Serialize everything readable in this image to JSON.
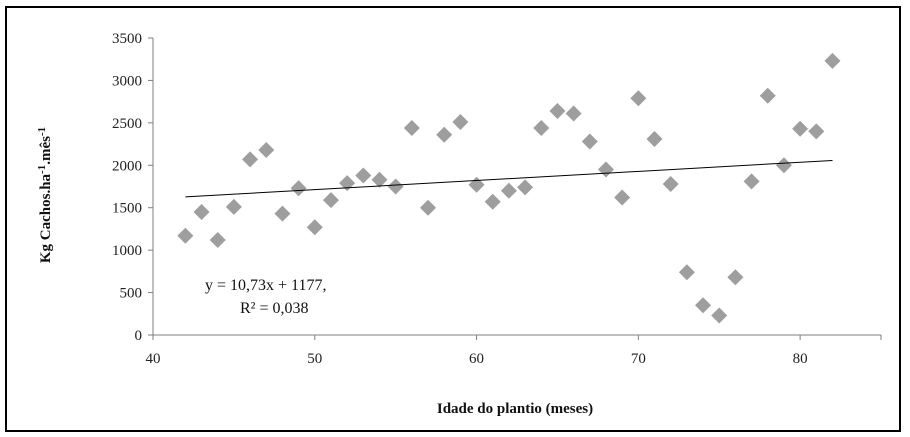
{
  "chart_data": {
    "type": "scatter",
    "xlabel": "Idade do plantio (meses)",
    "ylabel": {
      "main": "Kg Cachos.ha",
      "sup1": "-1",
      "mid": ".mês",
      "sup2": "-1"
    },
    "xlim": [
      40,
      85
    ],
    "ylim": [
      0,
      3500
    ],
    "x_ticks": [
      40,
      50,
      60,
      70,
      80
    ],
    "y_ticks": [
      0,
      500,
      1000,
      1500,
      2000,
      2500,
      3000,
      3500
    ],
    "grid": false,
    "marker_color": "#9e9e9e",
    "trendline": {
      "equation": "y = 10,73x + 1177,",
      "r2": "R² = 0,038",
      "slope": 10.73,
      "intercept": 1177,
      "x_range": [
        42,
        82
      ]
    },
    "points": [
      {
        "x": 42,
        "y": 1170
      },
      {
        "x": 43,
        "y": 1450
      },
      {
        "x": 44,
        "y": 1120
      },
      {
        "x": 45,
        "y": 1510
      },
      {
        "x": 46,
        "y": 2070
      },
      {
        "x": 47,
        "y": 2180
      },
      {
        "x": 48,
        "y": 1430
      },
      {
        "x": 49,
        "y": 1730
      },
      {
        "x": 50,
        "y": 1270
      },
      {
        "x": 51,
        "y": 1590
      },
      {
        "x": 52,
        "y": 1790
      },
      {
        "x": 53,
        "y": 1880
      },
      {
        "x": 54,
        "y": 1830
      },
      {
        "x": 55,
        "y": 1750
      },
      {
        "x": 56,
        "y": 2440
      },
      {
        "x": 57,
        "y": 1500
      },
      {
        "x": 58,
        "y": 2360
      },
      {
        "x": 59,
        "y": 2510
      },
      {
        "x": 60,
        "y": 1770
      },
      {
        "x": 61,
        "y": 1570
      },
      {
        "x": 62,
        "y": 1700
      },
      {
        "x": 63,
        "y": 1740
      },
      {
        "x": 64,
        "y": 2440
      },
      {
        "x": 65,
        "y": 2640
      },
      {
        "x": 66,
        "y": 2610
      },
      {
        "x": 67,
        "y": 2280
      },
      {
        "x": 68,
        "y": 1950
      },
      {
        "x": 69,
        "y": 1620
      },
      {
        "x": 70,
        "y": 2790
      },
      {
        "x": 71,
        "y": 2310
      },
      {
        "x": 72,
        "y": 1780
      },
      {
        "x": 73,
        "y": 740
      },
      {
        "x": 74,
        "y": 350
      },
      {
        "x": 75,
        "y": 230
      },
      {
        "x": 76,
        "y": 680
      },
      {
        "x": 77,
        "y": 1810
      },
      {
        "x": 78,
        "y": 2820
      },
      {
        "x": 79,
        "y": 2000
      },
      {
        "x": 80,
        "y": 2430
      },
      {
        "x": 81,
        "y": 2400
      },
      {
        "x": 82,
        "y": 3230
      }
    ]
  }
}
